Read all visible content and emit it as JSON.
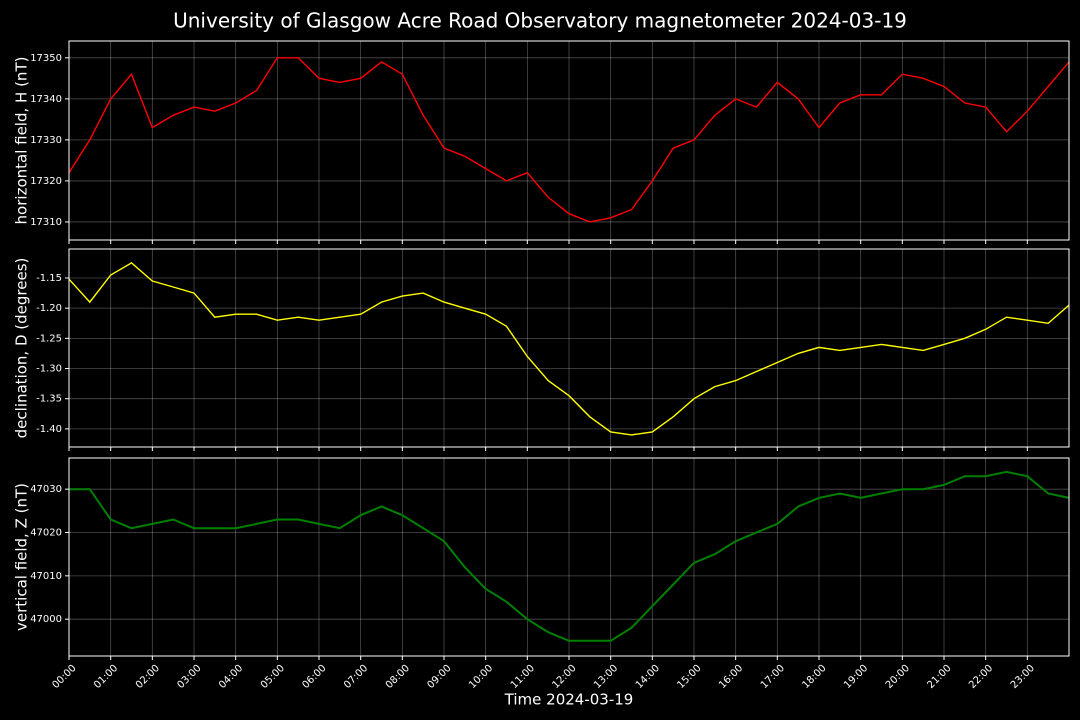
{
  "chart_data": [
    {
      "type": "line",
      "title": "University of Glasgow Acre Road Observatory magnetometer 2024-03-19",
      "ylabel": "horizontal field, H (nT)",
      "color": "#ff0000",
      "x": [
        0,
        0.5,
        1,
        1.5,
        2,
        2.5,
        3,
        3.5,
        4,
        4.5,
        5,
        5.5,
        6,
        6.5,
        7,
        7.5,
        8,
        8.5,
        9,
        9.5,
        10,
        10.5,
        11,
        11.5,
        12,
        12.5,
        13,
        13.5,
        14,
        14.5,
        15,
        15.5,
        16,
        16.5,
        17,
        17.5,
        18,
        18.5,
        19,
        19.5,
        20,
        20.5,
        21,
        21.5,
        22,
        22.5,
        23,
        23.5,
        24
      ],
      "values": [
        17322,
        17330,
        17340,
        17346,
        17333,
        17336,
        17338,
        17337,
        17339,
        17342,
        17350,
        17350,
        17345,
        17344,
        17345,
        17349,
        17346,
        17336,
        17328,
        17326,
        17323,
        17320,
        17322,
        17316,
        17312,
        17310,
        17311,
        17313,
        17320,
        17328,
        17330,
        17336,
        17340,
        17338,
        17344,
        17340,
        17333,
        17339,
        17341,
        17341,
        17346,
        17345,
        17343,
        17339,
        17338,
        17332,
        17337,
        17343,
        17349
      ],
      "ylim": [
        17305.6,
        17354.1
      ],
      "yticks": [
        17310,
        17320,
        17330,
        17340,
        17350
      ]
    },
    {
      "type": "line",
      "ylabel": "declination, D (degrees)",
      "color": "#ffff00",
      "x": [
        0,
        0.5,
        1,
        1.5,
        2,
        2.5,
        3,
        3.5,
        4,
        4.5,
        5,
        5.5,
        6,
        6.5,
        7,
        7.5,
        8,
        8.5,
        9,
        9.5,
        10,
        10.5,
        11,
        11.5,
        12,
        12.5,
        13,
        13.5,
        14,
        14.5,
        15,
        15.5,
        16,
        16.5,
        17,
        17.5,
        18,
        18.5,
        19,
        19.5,
        20,
        20.5,
        21,
        21.5,
        22,
        22.5,
        23,
        23.5,
        24
      ],
      "values": [
        -1.152,
        -1.19,
        -1.145,
        -1.125,
        -1.155,
        -1.165,
        -1.175,
        -1.215,
        -1.21,
        -1.21,
        -1.22,
        -1.215,
        -1.22,
        -1.215,
        -1.21,
        -1.19,
        -1.18,
        -1.175,
        -1.19,
        -1.2,
        -1.21,
        -1.23,
        -1.28,
        -1.32,
        -1.345,
        -1.38,
        -1.405,
        -1.41,
        -1.405,
        -1.38,
        -1.35,
        -1.33,
        -1.32,
        -1.305,
        -1.29,
        -1.275,
        -1.265,
        -1.27,
        -1.265,
        -1.26,
        -1.265,
        -1.27,
        -1.26,
        -1.25,
        -1.235,
        -1.215,
        -1.22,
        -1.225,
        -1.195
      ],
      "ylim": [
        -1.43,
        -1.102
      ],
      "yticks": [
        {
          "value": -1.4,
          "label": "-1.40"
        },
        -1.35,
        {
          "value": -1.3,
          "label": "-1.30"
        },
        -1.25,
        {
          "value": -1.2,
          "label": "-1.20"
        },
        -1.15
      ]
    },
    {
      "type": "line",
      "ylabel": "vertical field, Z (nT)",
      "xlabel": "Time 2024-03-19",
      "color": "#008000",
      "x": [
        0,
        0.5,
        1,
        1.5,
        2,
        2.5,
        3,
        3.5,
        4,
        4.5,
        5,
        5.5,
        6,
        6.5,
        7,
        7.5,
        8,
        8.5,
        9,
        9.5,
        10,
        10.5,
        11,
        11.5,
        12,
        12.5,
        13,
        13.5,
        14,
        14.5,
        15,
        15.5,
        16,
        16.5,
        17,
        17.5,
        18,
        18.5,
        19,
        19.5,
        20,
        20.5,
        21,
        21.5,
        22,
        22.5,
        23,
        23.5,
        24
      ],
      "values": [
        47030,
        47030,
        47023,
        47021,
        47022,
        47023,
        47021,
        47021,
        47021,
        47022,
        47023,
        47023,
        47022,
        47021,
        47024,
        47026,
        47024,
        47021,
        47018,
        47012,
        47007,
        47004,
        47000,
        46997,
        46995,
        46995,
        46995,
        46998,
        47003,
        47008,
        47013,
        47015,
        47018,
        47020,
        47022,
        47026,
        47028,
        47029,
        47028,
        47029,
        47030,
        47030,
        47031,
        47033,
        47033,
        47034,
        47033,
        47029,
        47028
      ],
      "ylim": [
        46991.5,
        47037.2
      ],
      "yticks": [
        47000,
        47010,
        47020,
        47030
      ],
      "xlim": [
        0,
        24
      ],
      "xticks": [
        {
          "value": 0,
          "label": "00:00"
        },
        {
          "value": 1,
          "label": "01:00"
        },
        {
          "value": 2,
          "label": "02:00"
        },
        {
          "value": 3,
          "label": "03:00"
        },
        {
          "value": 4,
          "label": "04:00"
        },
        {
          "value": 5,
          "label": "05:00"
        },
        {
          "value": 6,
          "label": "06:00"
        },
        {
          "value": 7,
          "label": "07:00"
        },
        {
          "value": 8,
          "label": "08:00"
        },
        {
          "value": 9,
          "label": "09:00"
        },
        {
          "value": 10,
          "label": "10:00"
        },
        {
          "value": 11,
          "label": "11:00"
        },
        {
          "value": 12,
          "label": "12:00"
        },
        {
          "value": 13,
          "label": "13:00"
        },
        {
          "value": 14,
          "label": "14:00"
        },
        {
          "value": 15,
          "label": "15:00"
        },
        {
          "value": 16,
          "label": "16:00"
        },
        {
          "value": 17,
          "label": "17:00"
        },
        {
          "value": 18,
          "label": "18:00"
        },
        {
          "value": 19,
          "label": "19:00"
        },
        {
          "value": 20,
          "label": "20:00"
        },
        {
          "value": 21,
          "label": "21:00"
        },
        {
          "value": 22,
          "label": "22:00"
        },
        {
          "value": 23,
          "label": "23:00"
        }
      ]
    }
  ]
}
